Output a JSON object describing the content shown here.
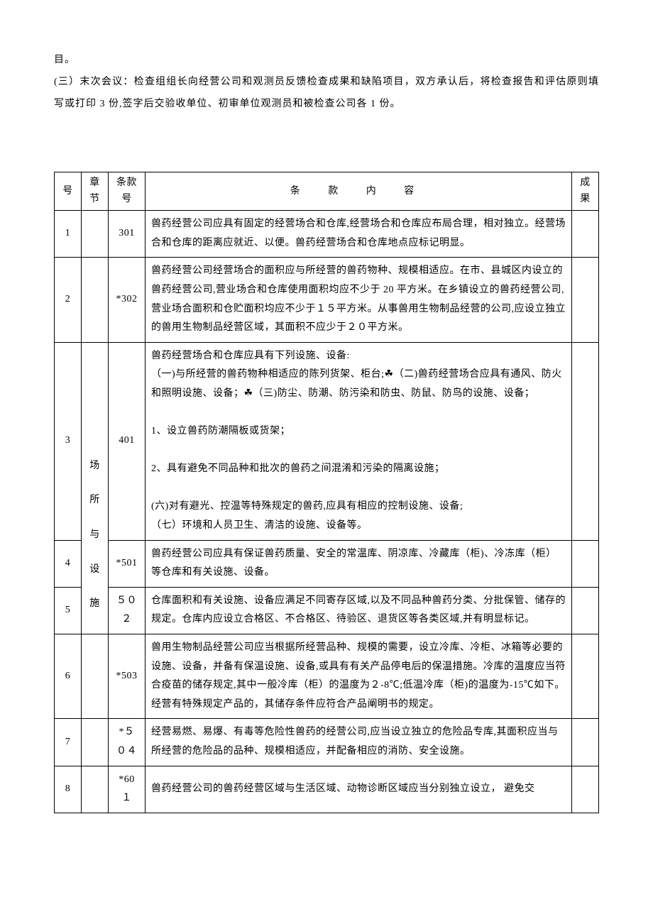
{
  "intro": {
    "p1": "目。",
    "p2": "(三）末次会议：检查组组长向经营公司和观测员反馈检查成果和缺陷项目，双方承认后，将检查报告和评估原则填写或打印 3 份,签字后交验收单位、初审单位观测员和被检查公司各 1 份。"
  },
  "headers": {
    "num": "号",
    "chapter_l1": "章",
    "chapter_l2": "节",
    "clause_l1": "条款",
    "clause_l2": "号",
    "content": "条 款 内 容",
    "result_l1": "成",
    "result_l2": "果"
  },
  "chapter_label": {
    "c1": "场",
    "c2": "所",
    "c3": "与",
    "c4": "设",
    "c5": "施"
  },
  "rows": [
    {
      "num": "1",
      "clause": "301",
      "content": "兽药经营公司应具有固定的经营场合和仓库,经营场合和仓库应布局合理，相对独立。经营场合和仓库的距离应就近、以便。兽药经营场合和仓库地点应标记明显。"
    },
    {
      "num": "2",
      "clause": "*302",
      "content": "兽药经营公司经营场合的面积应与所经营的兽药物种、规模相适应。在市、县城区内设立的兽药经营公司,营业场合和仓库使用面积均应不少于 20 平方米。在乡镇设立的兽药经营公司,营业场合面积和仓贮面积均应不少于１５平方米。从事兽用生物制品经营的公司,应设立独立的兽用生物制品经营区域，其面积不应少于２０平方米。"
    },
    {
      "num": "3",
      "clause": "401",
      "content": "兽药经营场合和仓库应具有下列设施、设备:\n（一)与所经营的兽药物种相适应的陈列货架、柜台;☘（二)兽药经营场合应具有通风、防火和照明设施、设备；☘（三)防尘、防潮、防污染和防虫、防鼠、防鸟的设施、设备；\n\n1、设立兽药防潮隔板或货架；\n\n2、具有避免不同品种和批次的兽药之间混淆和污染的隔离设施；\n\n(六)对有避光、控温等特殊规定的兽药,应具有相应的控制设施、设备;\n（七）环境和人员卫生、清洁的设施、设备等。"
    },
    {
      "num": "4",
      "clause": "*501",
      "content": "兽药经营公司应具有保证兽药质量、安全的常温库、阴凉库、冷藏库（柜)、冷冻库（柜）等仓库和有关设施、设备。"
    },
    {
      "num": "5",
      "clause": "５０２",
      "content": "仓库面积和有关设施、设备应满足不同寄存区域,以及不同品种兽药分类、分批保管、储存的规定。仓库内应设立合格区、不合格区、待验区、退货区等各类区域,并有明显标记。"
    },
    {
      "num": "6",
      "clause": "*503",
      "content": "兽用生物制品经营公司应当根据所经营品种、规模的需要，设立冷库、冷柜、冰箱等必要的设施、设备，并备有保温设施、设备,或具有有关产品停电后的保温措施。冷库的温度应当符合疫苗的储存规定,其中一般冷库（柜）的温度为２-8℃;低温冷库（柜)的温度为-15℃如下。经营有特殊规定产品的，其储存条件应符合产品阐明书的规定。"
    },
    {
      "num": "7",
      "clause": "*５０４",
      "content": "经营易燃、易爆、有毒等危险性兽药的经营公司,应当设立独立的危险品专库,其面积应当与所经营的危险品的品种、规模相适应，并配备相应的消防、安全设施。"
    },
    {
      "num": "8",
      "clause": "*60１",
      "content": "兽药经营公司的兽药经营区域与生活区域、动物诊断区域应当分别独立设立， 避免交"
    }
  ]
}
